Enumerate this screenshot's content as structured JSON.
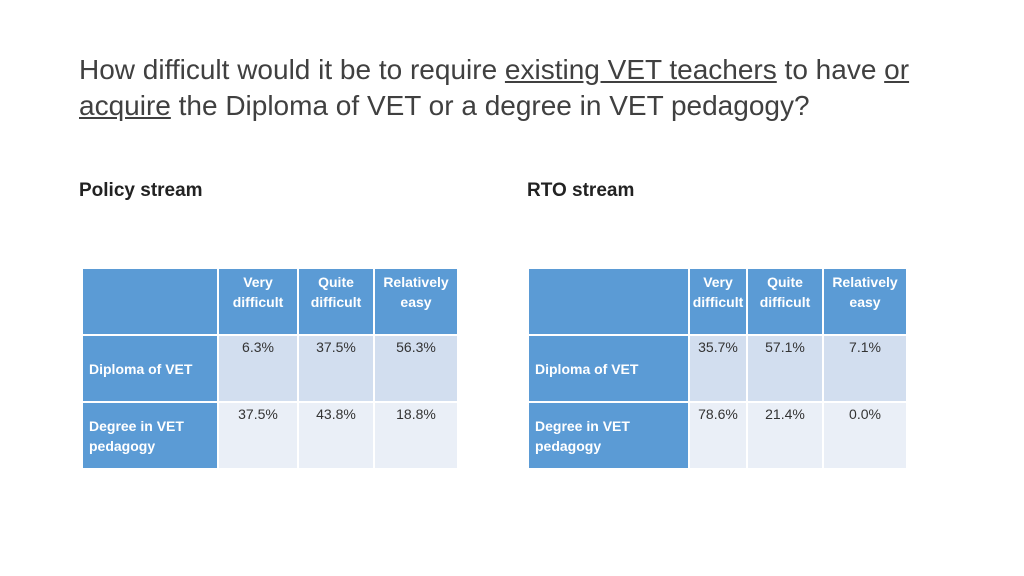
{
  "title": {
    "part1": "How difficult would it be to require ",
    "part2": "existing VET teachers",
    "part3": " to have ",
    "part4": "or acquire",
    "part5": " the Diploma of VET or a degree in VET pedagogy?"
  },
  "policy": {
    "label": "Policy stream",
    "headers": [
      "Very difficult",
      "Quite difficult",
      "Relatively easy"
    ],
    "rows": [
      {
        "label": "Diploma of VET",
        "values": [
          "6.3%",
          "37.5%",
          "56.3%"
        ]
      },
      {
        "label": "Degree in VET pedagogy",
        "values": [
          "37.5%",
          "43.8%",
          "18.8%"
        ]
      }
    ]
  },
  "rto": {
    "label": "RTO stream",
    "headers": [
      "Very difficult",
      "Quite difficult",
      "Relatively easy"
    ],
    "rows": [
      {
        "label": "Diploma of VET",
        "values": [
          "35.7%",
          "57.1%",
          "7.1%"
        ]
      },
      {
        "label": "Degree in VET pedagogy",
        "values": [
          "78.6%",
          "21.4%",
          "0.0%"
        ]
      }
    ]
  }
}
